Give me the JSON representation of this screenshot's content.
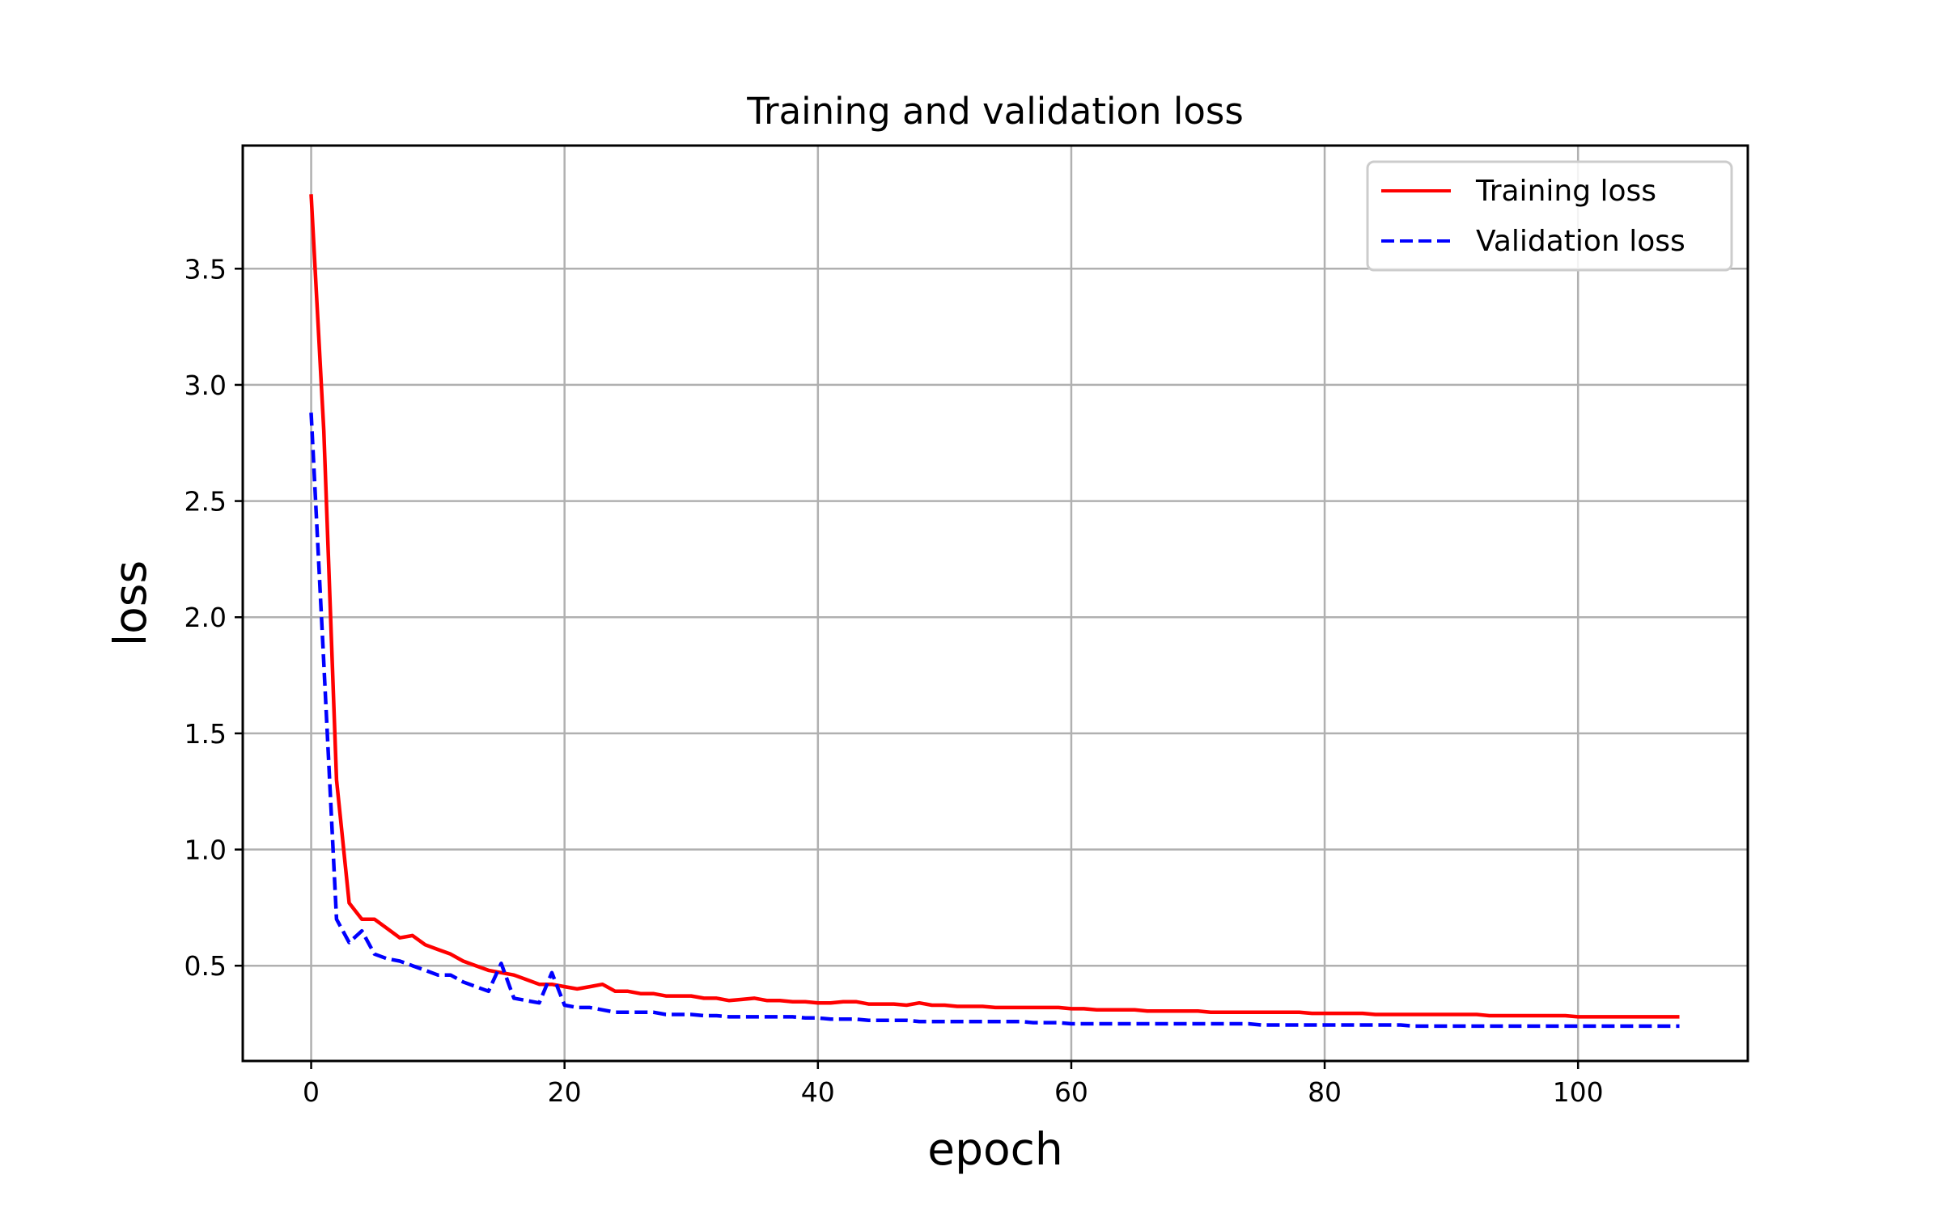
{
  "chart_data": {
    "type": "line",
    "title": "Training and validation loss",
    "xlabel": "epoch",
    "ylabel": "loss",
    "xlim": [
      -5.4,
      113.4
    ],
    "ylim": [
      0.09,
      4.03
    ],
    "xticks": [
      0,
      20,
      40,
      60,
      80,
      100
    ],
    "yticks": [
      0.5,
      1.0,
      1.5,
      2.0,
      2.5,
      3.0,
      3.5
    ],
    "grid": true,
    "legend_position": "top-right",
    "x": [
      0,
      1,
      2,
      3,
      4,
      5,
      6,
      7,
      8,
      9,
      10,
      11,
      12,
      13,
      14,
      15,
      16,
      17,
      18,
      19,
      20,
      21,
      22,
      23,
      24,
      25,
      26,
      27,
      28,
      29,
      30,
      31,
      32,
      33,
      34,
      35,
      36,
      37,
      38,
      39,
      40,
      41,
      42,
      43,
      44,
      45,
      46,
      47,
      48,
      49,
      50,
      51,
      52,
      53,
      54,
      55,
      56,
      57,
      58,
      59,
      60,
      61,
      62,
      63,
      64,
      65,
      66,
      67,
      68,
      69,
      70,
      71,
      72,
      73,
      74,
      75,
      76,
      77,
      78,
      79,
      80,
      81,
      82,
      83,
      84,
      85,
      86,
      87,
      88,
      89,
      90,
      91,
      92,
      93,
      94,
      95,
      96,
      97,
      98,
      99,
      100,
      101,
      102,
      103,
      104,
      105,
      106,
      107,
      108
    ],
    "series": [
      {
        "name": "Training loss",
        "color": "#ff0000",
        "style": "solid",
        "values": [
          3.82,
          2.8,
          1.3,
          0.77,
          0.7,
          0.7,
          0.66,
          0.62,
          0.63,
          0.59,
          0.57,
          0.55,
          0.52,
          0.5,
          0.48,
          0.47,
          0.46,
          0.44,
          0.42,
          0.42,
          0.41,
          0.4,
          0.41,
          0.42,
          0.39,
          0.39,
          0.38,
          0.38,
          0.37,
          0.37,
          0.37,
          0.36,
          0.36,
          0.35,
          0.355,
          0.36,
          0.35,
          0.35,
          0.345,
          0.345,
          0.34,
          0.34,
          0.345,
          0.345,
          0.335,
          0.335,
          0.335,
          0.33,
          0.34,
          0.33,
          0.33,
          0.325,
          0.325,
          0.325,
          0.32,
          0.32,
          0.32,
          0.32,
          0.32,
          0.32,
          0.315,
          0.315,
          0.31,
          0.31,
          0.31,
          0.31,
          0.305,
          0.305,
          0.305,
          0.305,
          0.305,
          0.3,
          0.3,
          0.3,
          0.3,
          0.3,
          0.3,
          0.3,
          0.3,
          0.295,
          0.295,
          0.295,
          0.295,
          0.295,
          0.29,
          0.29,
          0.29,
          0.29,
          0.29,
          0.29,
          0.29,
          0.29,
          0.29,
          0.285,
          0.285,
          0.285,
          0.285,
          0.285,
          0.285,
          0.285,
          0.28,
          0.28,
          0.28,
          0.28,
          0.28,
          0.28,
          0.28,
          0.28,
          0.28
        ]
      },
      {
        "name": "Validation loss",
        "color": "#0000ff",
        "style": "dashed",
        "values": [
          2.88,
          1.8,
          0.7,
          0.6,
          0.65,
          0.55,
          0.53,
          0.52,
          0.5,
          0.48,
          0.46,
          0.46,
          0.43,
          0.41,
          0.39,
          0.51,
          0.36,
          0.35,
          0.34,
          0.47,
          0.33,
          0.32,
          0.32,
          0.31,
          0.3,
          0.3,
          0.3,
          0.3,
          0.29,
          0.29,
          0.29,
          0.285,
          0.285,
          0.28,
          0.28,
          0.28,
          0.28,
          0.28,
          0.28,
          0.275,
          0.275,
          0.27,
          0.27,
          0.27,
          0.265,
          0.265,
          0.265,
          0.265,
          0.26,
          0.26,
          0.26,
          0.26,
          0.26,
          0.26,
          0.26,
          0.26,
          0.26,
          0.255,
          0.255,
          0.255,
          0.25,
          0.25,
          0.25,
          0.25,
          0.25,
          0.25,
          0.25,
          0.25,
          0.25,
          0.25,
          0.25,
          0.25,
          0.25,
          0.25,
          0.25,
          0.245,
          0.245,
          0.245,
          0.245,
          0.245,
          0.245,
          0.245,
          0.245,
          0.245,
          0.245,
          0.245,
          0.245,
          0.24,
          0.24,
          0.24,
          0.24,
          0.24,
          0.24,
          0.24,
          0.24,
          0.24,
          0.24,
          0.24,
          0.24,
          0.24,
          0.24,
          0.24,
          0.24,
          0.24,
          0.24,
          0.24,
          0.24,
          0.24,
          0.24
        ]
      }
    ]
  }
}
